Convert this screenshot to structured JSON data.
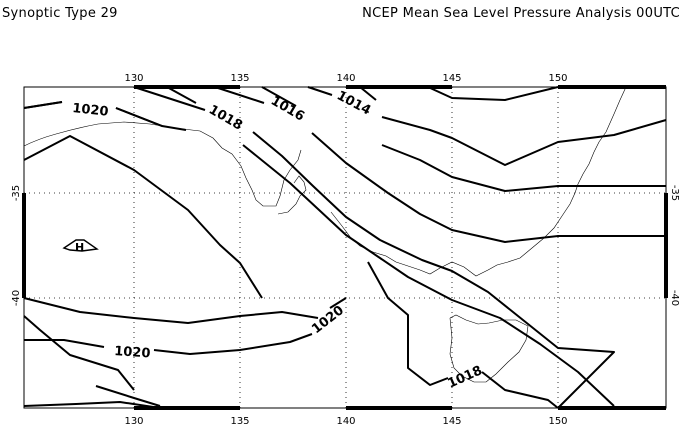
{
  "header": {
    "left_title": "Synoptic Type 29",
    "right_title": "NCEP Mean Sea Level Pressure Analysis 00UTC"
  },
  "map": {
    "lon_ticks": [
      "130",
      "135",
      "140",
      "145",
      "150"
    ],
    "lat_ticks": [
      "-35",
      "-40"
    ],
    "high_marker": "H",
    "contour_labels": [
      "1020",
      "1018",
      "1016",
      "1014",
      "1020",
      "1020",
      "1018"
    ]
  }
}
